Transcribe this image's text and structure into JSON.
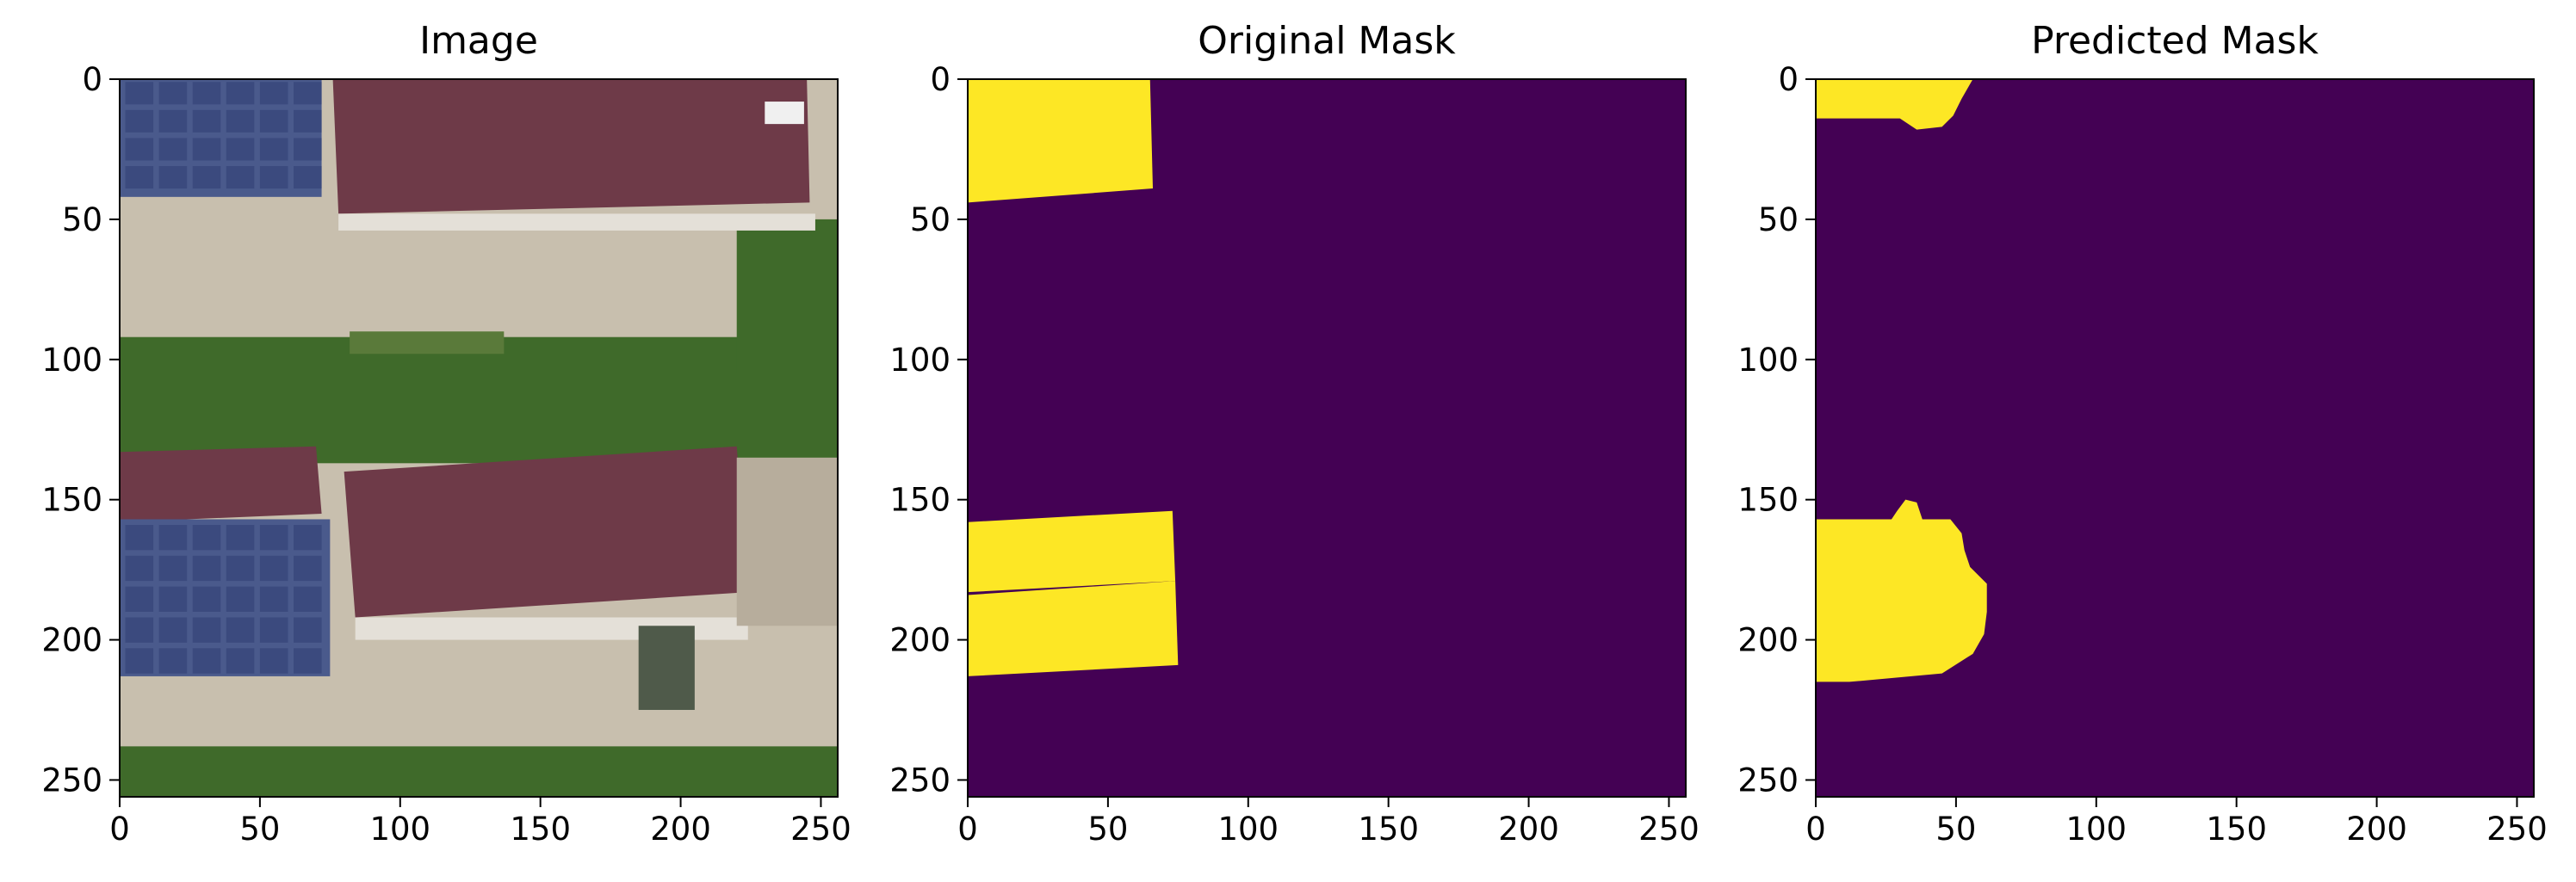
{
  "chart_data": [
    {
      "type": "heatmap",
      "title": "Image",
      "content": "aerial RGB photograph",
      "xlim": [
        0,
        256
      ],
      "ylim": [
        256,
        0
      ],
      "xticks": [
        0,
        50,
        100,
        150,
        200,
        250
      ],
      "yticks": [
        0,
        50,
        100,
        150,
        200,
        250
      ],
      "xtick_labels": [
        "0",
        "50",
        "100",
        "150",
        "200",
        "250"
      ],
      "ytick_labels": [
        "0",
        "50",
        "100",
        "150",
        "200",
        "250"
      ],
      "colors": {
        "roof": "#6e3a48",
        "ground": "#c8bfae",
        "vegetation": "#3f6a2a",
        "solar_panel": "#4a5a8c",
        "light_ground": "#e4e0d8"
      }
    },
    {
      "type": "heatmap",
      "title": "Original Mask",
      "xlim": [
        0,
        256
      ],
      "ylim": [
        256,
        0
      ],
      "xticks": [
        0,
        50,
        100,
        150,
        200,
        250
      ],
      "yticks": [
        0,
        50,
        100,
        150,
        200,
        250
      ],
      "xtick_labels": [
        "0",
        "50",
        "100",
        "150",
        "200",
        "250"
      ],
      "ytick_labels": [
        "0",
        "50",
        "100",
        "150",
        "200",
        "250"
      ],
      "colormap": {
        "0": "#440154",
        "1": "#fde725"
      },
      "regions": [
        {
          "value": 1,
          "polygon": [
            [
              0,
              0
            ],
            [
              65,
              0
            ],
            [
              66,
              39
            ],
            [
              0,
              44
            ]
          ]
        },
        {
          "value": 1,
          "polygon": [
            [
              0,
              158
            ],
            [
              73,
              154
            ],
            [
              74,
              179
            ],
            [
              0,
              183
            ]
          ]
        },
        {
          "value": 1,
          "polygon": [
            [
              0,
              184
            ],
            [
              74,
              179
            ],
            [
              75,
              209
            ],
            [
              0,
              213
            ]
          ]
        }
      ]
    },
    {
      "type": "heatmap",
      "title": "Predicted Mask",
      "xlim": [
        0,
        256
      ],
      "ylim": [
        256,
        0
      ],
      "xticks": [
        0,
        50,
        100,
        150,
        200,
        250
      ],
      "yticks": [
        0,
        50,
        100,
        150,
        200,
        250
      ],
      "xtick_labels": [
        "0",
        "50",
        "100",
        "150",
        "200",
        "250"
      ],
      "ytick_labels": [
        "0",
        "50",
        "100",
        "150",
        "200",
        "250"
      ],
      "colormap": {
        "0": "#440154",
        "1": "#fde725"
      },
      "regions": [
        {
          "value": 1,
          "polygon": [
            [
              0,
              0
            ],
            [
              56,
              0
            ],
            [
              52,
              7
            ],
            [
              49,
              13
            ],
            [
              45,
              17
            ],
            [
              36,
              18
            ],
            [
              30,
              14
            ],
            [
              0,
              14
            ]
          ]
        },
        {
          "value": 1,
          "polygon": [
            [
              0,
              157
            ],
            [
              27,
              157
            ],
            [
              29,
              154
            ],
            [
              32,
              150
            ],
            [
              36,
              151
            ],
            [
              38,
              157
            ],
            [
              48,
              157
            ],
            [
              52,
              162
            ],
            [
              53,
              168
            ],
            [
              55,
              174
            ],
            [
              61,
              180
            ],
            [
              61,
              190
            ],
            [
              60,
              198
            ],
            [
              56,
              205
            ],
            [
              45,
              212
            ],
            [
              12,
              215
            ],
            [
              0,
              215
            ]
          ]
        }
      ]
    }
  ]
}
